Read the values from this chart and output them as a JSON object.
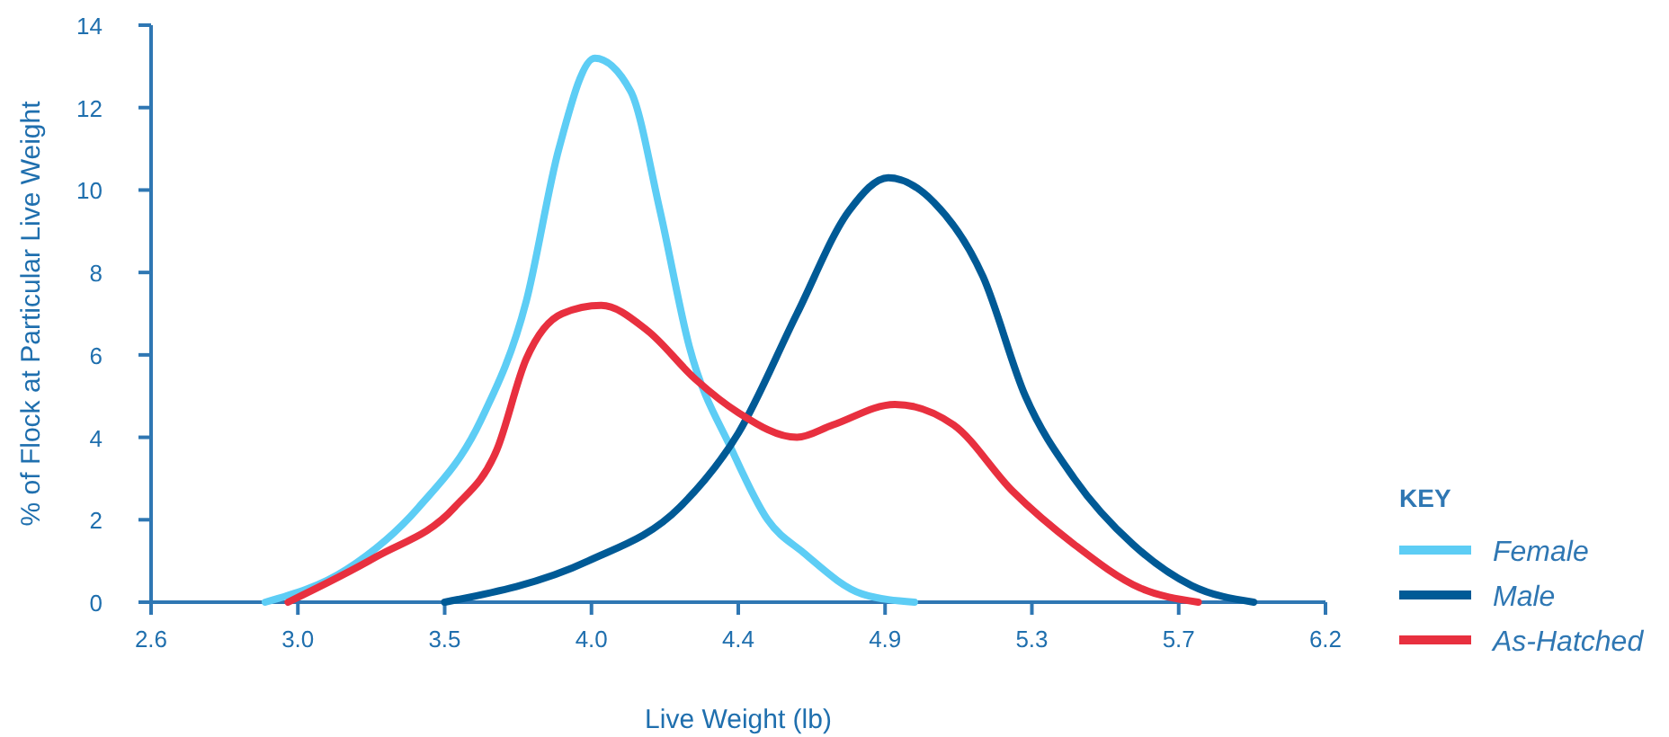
{
  "chart_data": {
    "type": "line",
    "xlabel": "Live Weight (lb)",
    "ylabel": "% of Flock at Particular Live Weight",
    "legend_title": "KEY",
    "legend": "bottom right",
    "grid": false,
    "marker": "none",
    "line_style": "solid",
    "xlim": [
      2.6,
      6.2
    ],
    "xticks": [
      2.6,
      {
        "value": 3.05,
        "label": "3.0"
      },
      3.5,
      {
        "value": 3.95,
        "label": "4.0"
      },
      4.4,
      {
        "value": 4.85,
        "label": "4.9"
      },
      5.3,
      {
        "value": 5.75,
        "label": "5.7"
      },
      6.2
    ],
    "ylim": [
      0,
      14
    ],
    "yticks": [
      0,
      2,
      4,
      6,
      8,
      10,
      12,
      14
    ],
    "series": [
      {
        "name": "Female",
        "color": "#5dcdf5",
        "x": [
          2.95,
          3.2,
          3.42,
          3.61,
          3.75,
          3.85,
          3.96,
          4.07,
          4.16,
          4.25,
          4.38,
          4.49,
          4.6,
          4.78,
          4.94
        ],
        "values": [
          0,
          0.8,
          2.3,
          4.4,
          7.3,
          11.0,
          13.2,
          12.4,
          9.5,
          6.2,
          3.7,
          2.0,
          1.2,
          0.2,
          0
        ]
      },
      {
        "name": "Male",
        "color": "#005a96",
        "x": [
          3.5,
          3.94,
          4.22,
          4.4,
          4.58,
          4.74,
          4.86,
          5.0,
          5.15,
          5.28,
          5.43,
          5.61,
          5.79,
          5.98
        ],
        "values": [
          0,
          1.0,
          2.3,
          4.1,
          7.0,
          9.5,
          10.3,
          9.7,
          7.9,
          5.0,
          3.0,
          1.4,
          0.4,
          0
        ]
      },
      {
        "name": "As-Hatched",
        "color": "#e8303f",
        "x": [
          3.02,
          3.29,
          3.53,
          3.66,
          3.75,
          3.86,
          3.98,
          4.12,
          4.27,
          4.4,
          4.58,
          4.69,
          4.88,
          5.06,
          5.24,
          5.43,
          5.63,
          5.81
        ],
        "values": [
          0,
          1.1,
          2.3,
          3.7,
          5.9,
          7.0,
          7.2,
          6.6,
          5.4,
          4.6,
          4.0,
          4.3,
          4.8,
          4.3,
          2.7,
          1.4,
          0.35,
          0
        ]
      }
    ]
  }
}
